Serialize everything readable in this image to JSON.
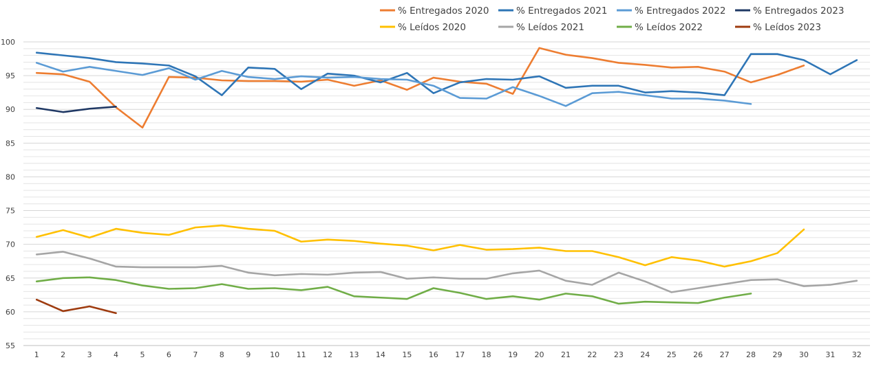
{
  "chart_data": {
    "type": "line",
    "title": "",
    "xlabel": "",
    "ylabel": "",
    "x": [
      1,
      2,
      3,
      4,
      5,
      6,
      7,
      8,
      9,
      10,
      11,
      12,
      13,
      14,
      15,
      16,
      17,
      18,
      19,
      20,
      21,
      22,
      23,
      24,
      25,
      26,
      27,
      28,
      29,
      30,
      31,
      32
    ],
    "ylim": [
      55,
      100
    ],
    "yticks": [
      55,
      60,
      65,
      70,
      75,
      80,
      85,
      90,
      95,
      100
    ],
    "grid": "horizontal",
    "legend_position": "top-right",
    "series": [
      {
        "name": "% Entregados 2020",
        "color": "#ed7d31",
        "values": [
          95.4,
          95.2,
          94.1,
          90.3,
          87.3,
          94.8,
          94.7,
          94.3,
          94.2,
          94.2,
          94.1,
          94.4,
          93.5,
          94.3,
          92.9,
          94.7,
          94.1,
          93.8,
          92.3,
          99.1,
          98.1,
          97.6,
          96.9,
          96.6,
          96.2,
          96.3,
          95.6,
          94.0,
          95.1,
          96.5,
          null,
          null
        ]
      },
      {
        "name": "% Entregados 2021",
        "color": "#2e75b6",
        "values": [
          98.4,
          98.0,
          97.6,
          97.0,
          96.8,
          96.5,
          94.9,
          92.1,
          96.2,
          96.0,
          93.0,
          95.3,
          95.0,
          94.0,
          95.4,
          92.4,
          94.0,
          94.5,
          94.4,
          94.9,
          93.2,
          93.5,
          93.5,
          92.5,
          92.7,
          92.5,
          92.1,
          98.2,
          98.2,
          97.3,
          95.2,
          97.3
        ]
      },
      {
        "name": "% Entregados 2022",
        "color": "#5b9bd5",
        "values": [
          96.9,
          95.6,
          96.3,
          95.7,
          95.1,
          96.1,
          94.4,
          95.7,
          94.8,
          94.5,
          94.9,
          94.7,
          94.8,
          94.5,
          94.4,
          93.5,
          91.7,
          91.6,
          93.3,
          92.0,
          90.5,
          92.4,
          92.6,
          92.1,
          91.6,
          91.6,
          91.3,
          90.8,
          null,
          null,
          null,
          null
        ]
      },
      {
        "name": "% Entregados 2023",
        "color": "#1f3864",
        "values": [
          90.2,
          89.6,
          90.1,
          90.4,
          null,
          null,
          null,
          null,
          null,
          null,
          null,
          null,
          null,
          null,
          null,
          null,
          null,
          null,
          null,
          null,
          null,
          null,
          null,
          null,
          null,
          null,
          null,
          null,
          null,
          null,
          null,
          null
        ]
      },
      {
        "name": "% Leídos 2020",
        "color": "#ffc000",
        "values": [
          71.1,
          72.1,
          71.0,
          72.3,
          71.7,
          71.4,
          72.5,
          72.8,
          72.3,
          72.0,
          70.4,
          70.7,
          70.5,
          70.1,
          69.8,
          69.1,
          69.9,
          69.2,
          69.3,
          69.5,
          69.0,
          69.0,
          68.1,
          66.9,
          68.1,
          67.6,
          66.7,
          67.5,
          68.7,
          72.2,
          null,
          null
        ]
      },
      {
        "name": "% Leídos 2021",
        "color": "#a5a5a5",
        "values": [
          68.5,
          68.9,
          67.9,
          66.7,
          66.6,
          66.6,
          66.6,
          66.8,
          65.8,
          65.4,
          65.6,
          65.5,
          65.8,
          65.9,
          64.9,
          65.1,
          64.9,
          64.9,
          65.7,
          66.1,
          64.6,
          64.0,
          65.8,
          64.5,
          62.9,
          63.5,
          64.1,
          64.7,
          64.8,
          63.8,
          64.0,
          64.6
        ]
      },
      {
        "name": "% Leídos 2022",
        "color": "#70ad47",
        "values": [
          64.5,
          65.0,
          65.1,
          64.7,
          63.9,
          63.4,
          63.5,
          64.1,
          63.4,
          63.5,
          63.2,
          63.7,
          62.3,
          62.1,
          61.9,
          63.5,
          62.8,
          61.9,
          62.3,
          61.8,
          62.7,
          62.3,
          61.2,
          61.5,
          61.4,
          61.3,
          62.1,
          62.7,
          null,
          null,
          null,
          null
        ]
      },
      {
        "name": "% Leídos 2023",
        "color": "#9e3b0f",
        "values": [
          61.8,
          60.1,
          60.8,
          59.8,
          null,
          null,
          null,
          null,
          null,
          null,
          null,
          null,
          null,
          null,
          null,
          null,
          null,
          null,
          null,
          null,
          null,
          null,
          null,
          null,
          null,
          null,
          null,
          null,
          null,
          null,
          null,
          null
        ]
      }
    ]
  }
}
